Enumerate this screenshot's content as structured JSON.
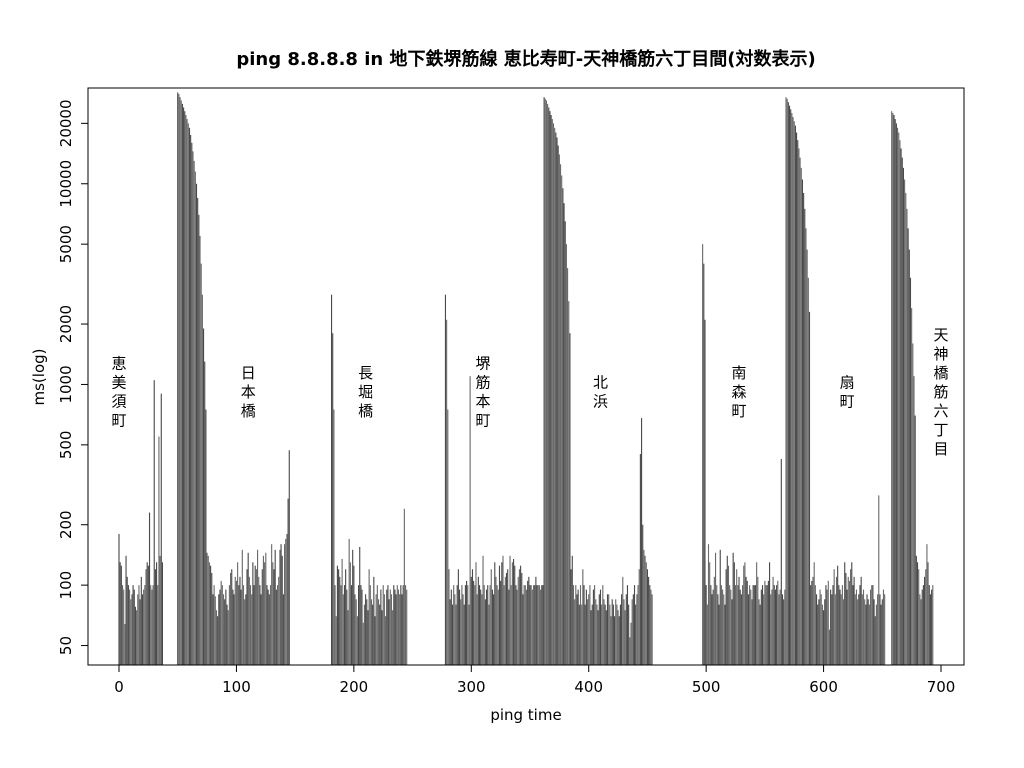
{
  "chart_data": {
    "type": "bar",
    "title": "ping 8.8.8.8 in 地下鉄堺筋線 恵比寿町-天神橋筋六丁目間(対数表示)",
    "xlabel": "ping time",
    "ylabel": "ms(log)",
    "y_scale": "log",
    "xlim": [
      -27,
      720
    ],
    "ylim": [
      40,
      30000
    ],
    "x_ticks": [
      {
        "value": 0,
        "label": "0"
      },
      {
        "value": 100,
        "label": "100"
      },
      {
        "value": 200,
        "label": "200"
      },
      {
        "value": 300,
        "label": "300"
      },
      {
        "value": 400,
        "label": "400"
      },
      {
        "value": 500,
        "label": "500"
      },
      {
        "value": 600,
        "label": "600"
      },
      {
        "value": 700,
        "label": "700"
      }
    ],
    "y_ticks": [
      {
        "value": 50,
        "label": "50"
      },
      {
        "value": 100,
        "label": "100"
      },
      {
        "value": 200,
        "label": "200"
      },
      {
        "value": 500,
        "label": "500"
      },
      {
        "value": 1000,
        "label": "1000"
      },
      {
        "value": 2000,
        "label": "2000"
      },
      {
        "value": 5000,
        "label": "5000"
      },
      {
        "value": 10000,
        "label": "10000"
      },
      {
        "value": 20000,
        "label": "20000"
      }
    ],
    "bar_color": "#555555",
    "grid": false,
    "annotations": [
      {
        "x": 0,
        "text": "恵美須町"
      },
      {
        "x": 110,
        "text": "日本橋"
      },
      {
        "x": 210,
        "text": "長堀橋"
      },
      {
        "x": 310,
        "text": "堺筋本町"
      },
      {
        "x": 410,
        "text": "北浜"
      },
      {
        "x": 528,
        "text": "南森町"
      },
      {
        "x": 620,
        "text": "扇町"
      },
      {
        "x": 700,
        "text": "天神橋筋六丁目"
      }
    ],
    "series": [
      {
        "segments": [
          {
            "x_start": 0,
            "values": [
              180,
              130,
              125,
              100,
              95,
              64,
              140,
              110,
              100,
              95,
              85,
              90,
              100,
              95,
              78,
              75,
              90,
              100,
              85,
              110,
              90,
              95,
              100,
              120,
              130,
              125,
              230,
              100
            ]
          },
          {
            "x_start": 28,
            "values": [
              95,
              100,
              1050,
              120,
              130,
              100,
              550,
              140,
              900,
              130
            ]
          },
          {
            "x_start": 50,
            "values": [
              28500,
              28000,
              27000,
              26000,
              25000,
              24000,
              23000,
              22000,
              21000,
              20000,
              19000,
              17500,
              16000,
              14500,
              13000,
              11500,
              10000,
              8500,
              7000,
              5500,
              4000,
              2800,
              1900,
              1300,
              750
            ]
          },
          {
            "x_start": 75,
            "values": [
              145,
              140,
              130,
              125,
              115,
              90,
              100,
              88,
              75,
              70,
              90,
              95,
              105,
              100,
              90,
              85,
              95,
              80,
              75,
              100,
              115,
              120,
              95,
              90,
              110,
              105,
              130,
              100,
              110,
              95,
              150,
              100,
              85,
              90,
              120,
              145,
              110,
              100,
              90,
              130,
              100,
              125,
              120,
              150,
              110,
              100,
              90,
              120,
              140,
              130,
              145,
              100,
              95,
              90,
              100,
              160,
              130,
              120,
              150,
              95,
              100,
              110,
              150,
              160,
              140,
              90,
              160,
              170,
              180,
              270,
              470
            ]
          }
        ]
      },
      {
        "segments": [
          {
            "x_start": 181,
            "values": [
              2800,
              1800,
              750,
              100,
              70,
              125,
              120,
              110,
              100,
              135,
              90,
              100,
              120,
              95,
              75,
              170,
              130,
              100,
              150,
              125,
              90,
              85,
              70,
              100,
              155,
              100,
              95,
              65,
              80,
              90,
              85,
              75,
              120,
              100,
              85,
              80,
              110,
              70,
              90,
              100,
              85,
              80,
              95,
              75,
              100,
              90,
              70,
              95,
              100,
              85,
              95,
              90,
              75,
              100,
              95,
              90,
              100,
              95,
              90,
              100,
              90,
              100,
              240,
              100,
              95
            ]
          }
        ]
      },
      {
        "segments": [
          {
            "x_start": 278,
            "values": [
              2800,
              2100,
              750,
              120,
              85,
              95,
              80,
              100,
              90,
              80,
              100,
              120,
              95,
              85,
              100,
              90,
              80,
              100,
              105,
              100,
              80,
              1100,
              110,
              120,
              105,
              100,
              130,
              90,
              110,
              100,
              95,
              90,
              140,
              100,
              85,
              95,
              100,
              80,
              100,
              120,
              95,
              90,
              130,
              110,
              100,
              95,
              125,
              105,
              130,
              140,
              100,
              110,
              115,
              120,
              95,
              140,
              100,
              130,
              135,
              125,
              100,
              95,
              110,
              120,
              125,
              115,
              90,
              100,
              100,
              95,
              105,
              110,
              100,
              100,
              95,
              100,
              100,
              110,
              100,
              100,
              100,
              95,
              100,
              100
            ]
          }
        ]
      },
      {
        "segments": [
          {
            "x_start": 362,
            "values": [
              27000,
              26500,
              26000,
              25000,
              24000,
              23000,
              22000,
              21000,
              20000,
              19000,
              18000,
              17000,
              15500,
              14000,
              12500,
              11000,
              9500,
              8000,
              6500,
              5000,
              3800,
              2600,
              1800
            ]
          },
          {
            "x_start": 385,
            "values": [
              120,
              140,
              100,
              85,
              100,
              90,
              95,
              80,
              100,
              80,
              120,
              100,
              80,
              95,
              85,
              90,
              100,
              75,
              80,
              95,
              100,
              85,
              80,
              75,
              90,
              95,
              80,
              100,
              85,
              80,
              75,
              90,
              90,
              80,
              70,
              85,
              80,
              70,
              85,
              80,
              75,
              70,
              80,
              90,
              110,
              85,
              75,
              90,
              100,
              80,
              55,
              65,
              85,
              90,
              100,
              80,
              90,
              100,
              120,
              450,
              680,
              200,
              150,
              140,
              130,
              120,
              110,
              100,
              95,
              90
            ]
          }
        ]
      },
      {
        "segments": [
          {
            "x_start": 497,
            "values": [
              5000,
              4000,
              2100,
              100,
              80,
              160,
              130,
              100,
              90,
              95,
              110,
              145,
              100,
              90,
              80,
              150,
              100,
              95,
              90,
              80,
              120,
              140,
              125,
              100,
              95,
              85,
              145,
              130,
              100,
              120,
              100,
              110,
              95,
              90,
              100,
              125,
              130,
              110,
              105,
              90,
              100,
              95,
              85,
              100,
              100,
              100,
              130,
              110,
              85,
              80,
              95,
              100,
              90,
              105,
              100,
              100,
              105,
              130,
              90,
              95,
              110,
              100,
              95,
              100,
              105,
              90,
              95,
              425,
              90,
              85,
              95
            ]
          }
        ]
      },
      {
        "segments": [
          {
            "x_start": 568,
            "values": [
              27000,
              26500,
              25500,
              24500,
              23500,
              22500,
              21500,
              20500,
              19500,
              18000,
              16500,
              15000,
              13500,
              12000,
              10500,
              9000,
              7500,
              6000,
              4700,
              3400,
              2300
            ]
          },
          {
            "x_start": 589,
            "values": [
              100,
              105,
              110,
              130,
              100,
              90,
              80,
              85,
              95,
              90,
              80,
              75,
              85,
              100,
              95,
              105,
              60,
              95,
              90,
              100,
              120,
              90,
              110,
              125,
              100,
              95,
              90,
              100,
              85,
              130,
              115,
              95,
              110,
              105,
              120,
              130,
              100,
              110,
              90,
              95,
              85,
              90,
              100,
              110,
              90,
              95,
              85,
              80,
              90,
              85,
              80,
              95,
              100,
              100,
              85,
              70,
              80,
              90,
              280,
              90,
              80,
              85,
              95,
              90
            ]
          }
        ]
      },
      {
        "segments": [
          {
            "x_start": 658,
            "values": [
              23000,
              22500,
              22000,
              21000,
              20000,
              19000,
              18000,
              16500,
              15000,
              13500,
              12000,
              10500,
              9000,
              7500,
              6000,
              4700,
              3400,
              2400,
              1600,
              1100,
              700
            ]
          },
          {
            "x_start": 679,
            "values": [
              140,
              130,
              120,
              90,
              85,
              95,
              100,
              110,
              120,
              160,
              130,
              100,
              90,
              95,
              100
            ]
          }
        ]
      }
    ]
  }
}
